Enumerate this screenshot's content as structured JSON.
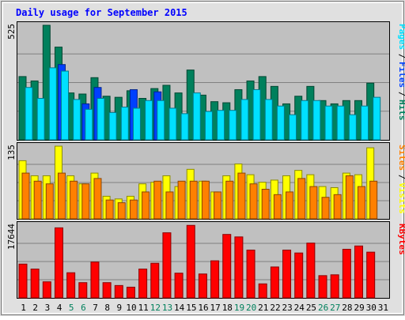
{
  "chart_data": [
    {
      "type": "bar",
      "title": "Daily usage for September 2015",
      "categories": [
        "1",
        "2",
        "3",
        "4",
        "5",
        "6",
        "7",
        "8",
        "9",
        "10",
        "11",
        "12",
        "13",
        "14",
        "15",
        "16",
        "17",
        "18",
        "19",
        "20",
        "21",
        "22",
        "23",
        "24",
        "25",
        "26",
        "27",
        "28",
        "29",
        "30",
        "31"
      ],
      "weekend_days": [
        "5",
        "6",
        "12",
        "13",
        "19",
        "20",
        "26",
        "27"
      ],
      "ylabel_max": "525",
      "legend": [
        {
          "label": "Pages",
          "color": "#00E0FF"
        },
        {
          "label": "Files",
          "color": "#0040FF"
        },
        {
          "label": "Hits",
          "color": "#00805C"
        }
      ],
      "series": [
        {
          "name": "Hits",
          "color": "#00805C",
          "values": [
            290,
            270,
            525,
            425,
            215,
            210,
            285,
            200,
            195,
            225,
            190,
            235,
            250,
            215,
            320,
            205,
            175,
            170,
            230,
            270,
            290,
            245,
            165,
            200,
            245,
            180,
            165,
            180,
            180,
            260,
            0
          ]
        },
        {
          "name": "Files",
          "color": "#0040FF",
          "values": [
            0,
            0,
            0,
            345,
            0,
            165,
            240,
            0,
            0,
            230,
            0,
            220,
            0,
            0,
            0,
            0,
            0,
            0,
            0,
            0,
            0,
            0,
            0,
            0,
            0,
            0,
            0,
            0,
            0,
            0,
            0
          ]
        },
        {
          "name": "Pages",
          "color": "#00E0FF",
          "values": [
            240,
            190,
            330,
            315,
            185,
            140,
            190,
            125,
            150,
            145,
            180,
            180,
            145,
            120,
            215,
            130,
            135,
            135,
            185,
            230,
            185,
            155,
            115,
            180,
            180,
            155,
            155,
            115,
            155,
            195,
            0
          ]
        }
      ],
      "ylim": [
        0,
        525
      ]
    },
    {
      "type": "bar",
      "categories": [
        "1",
        "2",
        "3",
        "4",
        "5",
        "6",
        "7",
        "8",
        "9",
        "10",
        "11",
        "12",
        "13",
        "14",
        "15",
        "16",
        "17",
        "18",
        "19",
        "20",
        "21",
        "22",
        "23",
        "24",
        "25",
        "26",
        "27",
        "28",
        "29",
        "30",
        "31"
      ],
      "ylabel_max": "135",
      "legend": [
        {
          "label": "Sites",
          "color": "#FF8000"
        },
        {
          "label": "Visits",
          "color": "#FFFF00"
        }
      ],
      "series": [
        {
          "name": "Visits",
          "color": "#FFFF00",
          "values": [
            108,
            80,
            80,
            135,
            80,
            65,
            85,
            42,
            37,
            42,
            65,
            68,
            80,
            60,
            92,
            70,
            50,
            80,
            102,
            82,
            68,
            72,
            80,
            90,
            82,
            60,
            58,
            85,
            82,
            132,
            0
          ]
        },
        {
          "name": "Sites",
          "color": "#FF8000",
          "values": [
            85,
            70,
            65,
            85,
            70,
            65,
            75,
            35,
            30,
            35,
            50,
            70,
            50,
            70,
            70,
            70,
            50,
            70,
            85,
            65,
            55,
            45,
            50,
            75,
            60,
            40,
            45,
            80,
            60,
            70,
            0
          ]
        }
      ],
      "ylim": [
        0,
        135
      ]
    },
    {
      "type": "bar",
      "categories": [
        "1",
        "2",
        "3",
        "4",
        "5",
        "6",
        "7",
        "8",
        "9",
        "10",
        "11",
        "12",
        "13",
        "14",
        "15",
        "16",
        "17",
        "18",
        "19",
        "20",
        "21",
        "22",
        "23",
        "24",
        "25",
        "26",
        "27",
        "28",
        "29",
        "30",
        "31"
      ],
      "ylabel_max": "17644",
      "legend": [
        {
          "label": "KBytes",
          "color": "#FF0000"
        }
      ],
      "series": [
        {
          "name": "KBytes",
          "color": "#FF0000",
          "values": [
            8200,
            7000,
            3900,
            17000,
            6100,
            3700,
            8700,
            3700,
            3000,
            2600,
            7000,
            8400,
            15800,
            6000,
            17600,
            5800,
            9000,
            15400,
            14800,
            11600,
            3400,
            7500,
            11600,
            10900,
            13300,
            5400,
            5600,
            11800,
            12600,
            11100,
            0
          ]
        }
      ],
      "ylim": [
        0,
        17644
      ]
    }
  ],
  "colors": {
    "plot_bg": "#C0C0C0",
    "panel_bg": "#E0E0E0",
    "title": "#0000FF",
    "weekend_label": "#00805C",
    "weekday_label": "#000000",
    "grid": "#808080"
  }
}
